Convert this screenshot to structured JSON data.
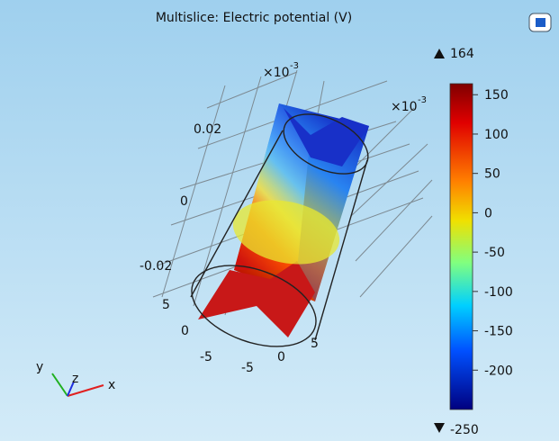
{
  "title": "Multislice: Electric potential (V)",
  "colorbar": {
    "max": 164,
    "min": -250,
    "ticks": [
      150,
      100,
      50,
      0,
      -50,
      -100,
      -150,
      -200
    ]
  },
  "axes": {
    "z_scale": {
      "base": "×10",
      "exponent": "-3"
    },
    "y_scale": {
      "base": "×10",
      "exponent": "-3"
    },
    "z_ticks": [
      "0.02",
      "0",
      "-0.02"
    ],
    "y_ticks": [
      "5",
      "0",
      "-5"
    ],
    "x_ticks": [
      "-5",
      "0",
      "5"
    ],
    "triad": {
      "x": "x",
      "y": "y",
      "z": "z"
    }
  }
}
